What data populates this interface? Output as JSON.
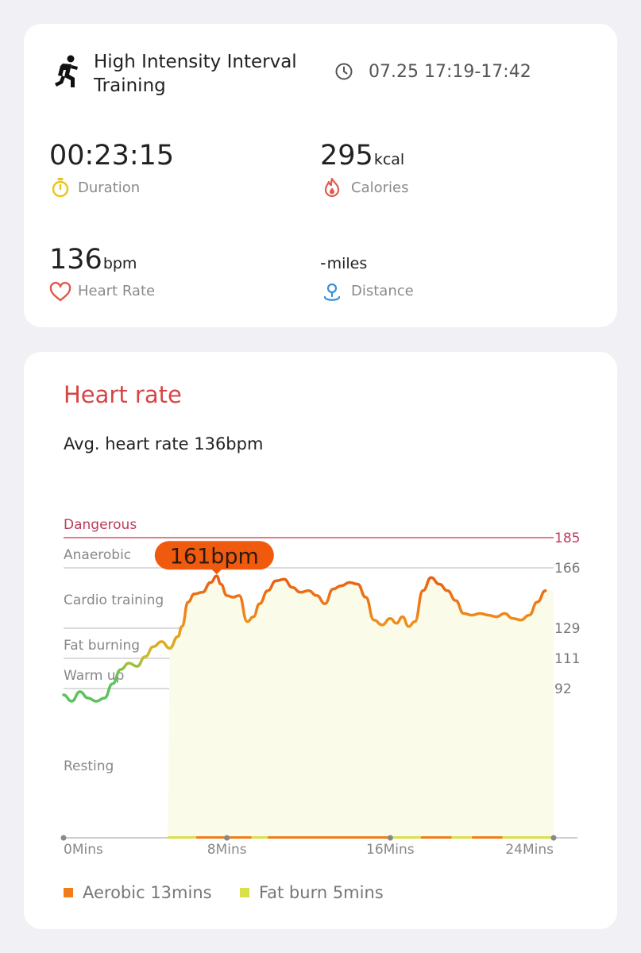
{
  "activity": {
    "title": "High Intensity Interval Training",
    "time_range": "07.25 17:19-17:42",
    "icon": "running-figure-icon"
  },
  "stats": {
    "duration": {
      "value": "00:23:15",
      "label": "Duration",
      "icon": "stopwatch-icon",
      "color": "#e8c619"
    },
    "calories": {
      "value": "295",
      "unit": "kcal",
      "label": "Calories",
      "icon": "flame-icon",
      "color": "#e05a4e"
    },
    "heart_rate": {
      "value": "136",
      "unit": "bpm",
      "label": "Heart Rate",
      "icon": "heart-icon",
      "color": "#e05a4e"
    },
    "distance": {
      "value": "-",
      "unit": "miles",
      "label": "Distance",
      "icon": "location-pin-icon",
      "color": "#3a8fd6"
    }
  },
  "heart_rate_section": {
    "title": "Heart rate",
    "avg_text": "Avg. heart rate 136bpm",
    "peak_label": "161bpm",
    "legend": [
      {
        "label": "Aerobic 13mins",
        "color": "#f07d1a"
      },
      {
        "label": "Fat burn 5mins",
        "color": "#d9e04a"
      }
    ]
  },
  "chart_data": {
    "type": "line",
    "xlabel": "",
    "ylabel": "",
    "x_ticks": [
      "0Mins",
      "8Mins",
      "16Mins",
      "24Mins"
    ],
    "xlim": [
      0,
      24
    ],
    "zones": [
      {
        "name": "Dangerous",
        "threshold": 185
      },
      {
        "name": "Anaerobic",
        "threshold": 166
      },
      {
        "name": "Cardio training",
        "threshold": 129
      },
      {
        "name": "Fat burning",
        "threshold": 111
      },
      {
        "name": "Warm up",
        "threshold": 92
      },
      {
        "name": "Resting",
        "threshold": null
      }
    ],
    "zone_tick_labels": [
      "185",
      "166",
      "129",
      "111",
      "92"
    ],
    "peak": {
      "x": 7.5,
      "y": 161,
      "label": "161bpm"
    },
    "series": [
      {
        "x": [
          0,
          0.4,
          0.8,
          1.2,
          1.6,
          2,
          2.4,
          2.8,
          3.2,
          3.6,
          4,
          4.4,
          4.8,
          5.2,
          5.6,
          5.8,
          6.1,
          6.4,
          6.8,
          7.2,
          7.5,
          7.7,
          8,
          8.3,
          8.6,
          9,
          9.3,
          9.6,
          10,
          10.4,
          10.8,
          11.2,
          11.6,
          12,
          12.4,
          12.8,
          13.2,
          13.6,
          14,
          14.4,
          14.8,
          15.2,
          15.6,
          16,
          16.3,
          16.6,
          16.9,
          17.2,
          17.6,
          18,
          18.4,
          18.8,
          19.2,
          19.6,
          20,
          20.4,
          20.8,
          21.2,
          21.6,
          22,
          22.4,
          22.8,
          23.2,
          23.6
        ],
        "y": [
          88,
          84,
          90,
          86,
          84,
          86,
          95,
          104,
          108,
          106,
          112,
          118,
          121,
          117,
          124,
          130,
          145,
          150,
          151,
          157,
          161,
          156,
          149,
          148,
          149,
          133,
          136,
          144,
          152,
          158,
          159,
          154,
          151,
          152,
          149,
          144,
          153,
          155,
          157,
          156,
          148,
          134,
          131,
          135,
          132,
          136,
          130,
          133,
          152,
          160,
          156,
          152,
          146,
          138,
          137,
          138,
          137,
          136,
          138,
          135,
          134,
          137,
          145,
          152
        ]
      }
    ],
    "grid": true,
    "legend_placement": "bottom"
  }
}
